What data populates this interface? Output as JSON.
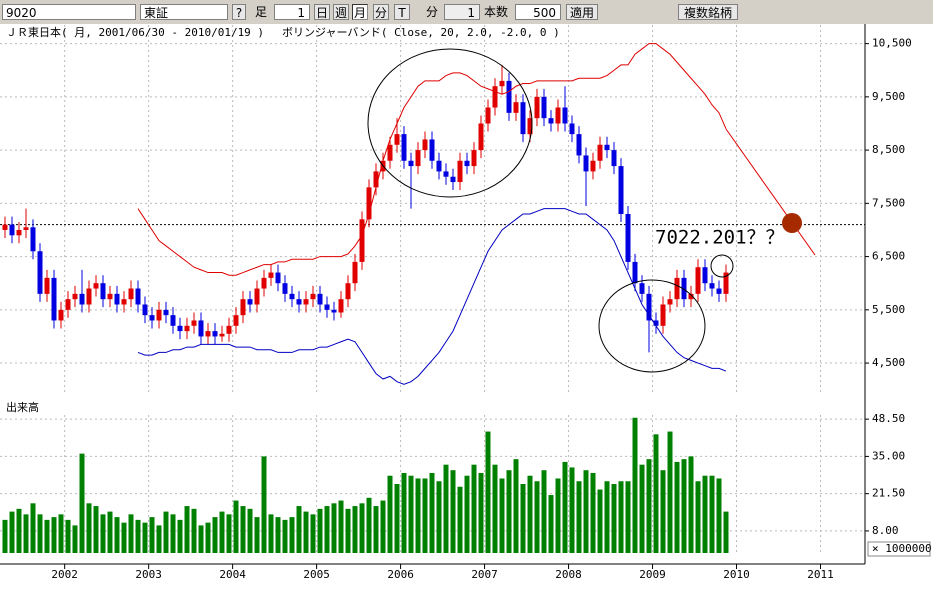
{
  "toolbar": {
    "symbol": "9020",
    "market": "東証",
    "help": "?",
    "bar_label": "足",
    "bar_count": "1",
    "periods": [
      "日",
      "週",
      "月",
      "分",
      "T"
    ],
    "minute_label": "分",
    "minute_value": "1",
    "count_label": "本数",
    "count_value": "500",
    "apply": "適用",
    "multi": "複数銘柄"
  },
  "chart_data": [
    {
      "type": "candlestick",
      "title": "ＪＲ東日本( 月, 2001/06/30 - 2010/01/19 )",
      "indicator": "ボリンジャーバンド( Close, 20, 2.0, -2.0, 0 )",
      "ylim": [
        3900,
        10850
      ],
      "yticks": [
        {
          "value": 4500,
          "label": "4,500"
        },
        {
          "value": 5500,
          "label": "5,500"
        },
        {
          "value": 6500,
          "label": "6,500"
        },
        {
          "value": 7500,
          "label": "7,500"
        },
        {
          "value": 8500,
          "label": "8,500"
        },
        {
          "value": 9500,
          "label": "9,500"
        },
        {
          "value": 10500,
          "label": "10,500"
        }
      ],
      "up_color": "#e00000",
      "down_color": "#0000e0",
      "candles": [
        [
          7000,
          7250,
          6850,
          7100
        ],
        [
          7100,
          7250,
          6750,
          6900
        ],
        [
          6900,
          7150,
          6750,
          7000
        ],
        [
          7000,
          7400,
          6850,
          7050
        ],
        [
          7050,
          7200,
          6450,
          6600
        ],
        [
          6600,
          6750,
          5650,
          5800
        ],
        [
          5800,
          6250,
          5650,
          6100
        ],
        [
          6100,
          6250,
          5150,
          5300
        ],
        [
          5300,
          5650,
          5150,
          5500
        ],
        [
          5500,
          5850,
          5350,
          5700
        ],
        [
          5700,
          5950,
          5550,
          5800
        ],
        [
          5800,
          6250,
          5450,
          5600
        ],
        [
          5600,
          6050,
          5450,
          5900
        ],
        [
          5900,
          6150,
          5750,
          6000
        ],
        [
          6000,
          6150,
          5550,
          5700
        ],
        [
          5700,
          5950,
          5550,
          5800
        ],
        [
          5800,
          5950,
          5450,
          5600
        ],
        [
          5600,
          5850,
          5450,
          5700
        ],
        [
          5700,
          6050,
          5550,
          5900
        ],
        [
          5900,
          6050,
          5450,
          5600
        ],
        [
          5600,
          5750,
          5250,
          5400
        ],
        [
          5400,
          5550,
          5150,
          5300
        ],
        [
          5300,
          5650,
          5150,
          5500
        ],
        [
          5500,
          5650,
          5250,
          5400
        ],
        [
          5400,
          5550,
          5050,
          5200
        ],
        [
          5200,
          5350,
          4950,
          5100
        ],
        [
          5100,
          5350,
          4950,
          5200
        ],
        [
          5200,
          5450,
          5050,
          5300
        ],
        [
          5300,
          5450,
          4850,
          5000
        ],
        [
          5000,
          5250,
          4850,
          5100
        ],
        [
          5100,
          5250,
          4850,
          5000
        ],
        [
          5000,
          5200,
          4900,
          5050
        ],
        [
          5050,
          5350,
          4900,
          5200
        ],
        [
          5200,
          5550,
          5050,
          5400
        ],
        [
          5400,
          5850,
          5250,
          5700
        ],
        [
          5700,
          5850,
          5450,
          5600
        ],
        [
          5600,
          6050,
          5450,
          5900
        ],
        [
          5900,
          6250,
          5750,
          6100
        ],
        [
          6100,
          6350,
          5950,
          6200
        ],
        [
          6200,
          6350,
          5850,
          6000
        ],
        [
          6000,
          6150,
          5650,
          5800
        ],
        [
          5800,
          5950,
          5550,
          5700
        ],
        [
          5700,
          5850,
          5450,
          5600
        ],
        [
          5600,
          5850,
          5450,
          5700
        ],
        [
          5700,
          5950,
          5550,
          5800
        ],
        [
          5800,
          5950,
          5450,
          5600
        ],
        [
          5600,
          5750,
          5350,
          5500
        ],
        [
          5500,
          5650,
          5300,
          5450
        ],
        [
          5450,
          5850,
          5350,
          5700
        ],
        [
          5700,
          6150,
          5550,
          6000
        ],
        [
          6000,
          6550,
          5850,
          6400
        ],
        [
          6400,
          7350,
          6250,
          7200
        ],
        [
          7200,
          7950,
          7050,
          7800
        ],
        [
          7800,
          8250,
          7650,
          8100
        ],
        [
          8100,
          8450,
          7950,
          8300
        ],
        [
          8300,
          8750,
          8150,
          8600
        ],
        [
          8600,
          9100,
          8450,
          8800
        ],
        [
          8800,
          8950,
          8150,
          8300
        ],
        [
          8300,
          8450,
          7400,
          8200
        ],
        [
          8200,
          8650,
          8050,
          8500
        ],
        [
          8500,
          8850,
          8350,
          8700
        ],
        [
          8700,
          8850,
          8150,
          8300
        ],
        [
          8300,
          8450,
          7950,
          8100
        ],
        [
          8100,
          8250,
          7850,
          8000
        ],
        [
          8000,
          8150,
          7750,
          7900
        ],
        [
          7900,
          8450,
          7750,
          8300
        ],
        [
          8300,
          8450,
          8050,
          8200
        ],
        [
          8200,
          8650,
          8050,
          8500
        ],
        [
          8500,
          9150,
          8350,
          9000
        ],
        [
          9000,
          9450,
          8850,
          9300
        ],
        [
          9300,
          9850,
          9150,
          9700
        ],
        [
          9700,
          10100,
          9550,
          9800
        ],
        [
          9800,
          9950,
          9050,
          9200
        ],
        [
          9200,
          9550,
          9050,
          9400
        ],
        [
          9400,
          9550,
          8650,
          8800
        ],
        [
          8800,
          9250,
          8650,
          9100
        ],
        [
          9100,
          9650,
          8950,
          9500
        ],
        [
          9500,
          9650,
          8950,
          9100
        ],
        [
          9100,
          9250,
          8850,
          9000
        ],
        [
          9000,
          9450,
          8850,
          9300
        ],
        [
          9300,
          9700,
          8850,
          9000
        ],
        [
          9000,
          9150,
          8650,
          8800
        ],
        [
          8800,
          8950,
          8250,
          8400
        ],
        [
          8400,
          8550,
          7450,
          8100
        ],
        [
          8100,
          8450,
          7950,
          8300
        ],
        [
          8300,
          8750,
          8150,
          8600
        ],
        [
          8600,
          8750,
          8350,
          8500
        ],
        [
          8500,
          8650,
          8050,
          8200
        ],
        [
          8200,
          8350,
          7150,
          7300
        ],
        [
          7300,
          7450,
          6250,
          6400
        ],
        [
          6400,
          6550,
          5850,
          6000
        ],
        [
          6000,
          6150,
          5650,
          5800
        ],
        [
          5800,
          5950,
          4700,
          5300
        ],
        [
          5300,
          5450,
          5050,
          5200
        ],
        [
          5200,
          5750,
          5050,
          5600
        ],
        [
          5600,
          5850,
          5450,
          5700
        ],
        [
          5700,
          6250,
          5550,
          6100
        ],
        [
          6100,
          6250,
          5550,
          5700
        ],
        [
          5700,
          5950,
          5550,
          5800
        ],
        [
          5800,
          6450,
          5650,
          6300
        ],
        [
          6300,
          6450,
          5850,
          6000
        ],
        [
          6000,
          6150,
          5750,
          5900
        ],
        [
          5900,
          6050,
          5650,
          5800
        ],
        [
          5800,
          6350,
          5650,
          6200
        ]
      ],
      "series": [
        {
          "color": "#e00000",
          "values": [
            null,
            null,
            null,
            null,
            null,
            null,
            null,
            null,
            null,
            null,
            null,
            null,
            null,
            null,
            null,
            null,
            null,
            null,
            null,
            7400,
            7200,
            7000,
            6800,
            6700,
            6600,
            6500,
            6400,
            6300,
            6250,
            6200,
            6200,
            6200,
            6150,
            6150,
            6200,
            6250,
            6300,
            6350,
            6350,
            6400,
            6400,
            6450,
            6450,
            6450,
            6450,
            6500,
            6500,
            6500,
            6500,
            6550,
            6700,
            6900,
            7300,
            7800,
            8300,
            8700,
            9000,
            9300,
            9500,
            9700,
            9800,
            9800,
            9800,
            9900,
            9950,
            9950,
            9900,
            9800,
            9700,
            9650,
            9600,
            9550,
            9600,
            9700,
            9750,
            9750,
            9800,
            9800,
            9800,
            9800,
            9800,
            9800,
            9850,
            9850,
            9850,
            9850,
            9900,
            10000,
            10100,
            10100,
            10300,
            10400,
            10500,
            10500,
            10400,
            10300,
            10150,
            10000,
            9850,
            9700,
            9550,
            9350,
            9200,
            8900
          ]
        },
        {
          "color": "#0000c0",
          "values": [
            null,
            null,
            null,
            null,
            null,
            null,
            null,
            null,
            null,
            null,
            null,
            null,
            null,
            null,
            null,
            null,
            null,
            null,
            null,
            4700,
            4650,
            4650,
            4700,
            4700,
            4750,
            4750,
            4800,
            4800,
            4850,
            4850,
            4850,
            4850,
            4850,
            4800,
            4800,
            4800,
            4750,
            4750,
            4750,
            4700,
            4700,
            4700,
            4750,
            4750,
            4750,
            4800,
            4800,
            4850,
            4900,
            4950,
            4900,
            4700,
            4500,
            4300,
            4200,
            4250,
            4150,
            4100,
            4150,
            4250,
            4400,
            4550,
            4700,
            4900,
            5100,
            5400,
            5700,
            6000,
            6300,
            6600,
            6800,
            7000,
            7100,
            7200,
            7300,
            7300,
            7350,
            7400,
            7400,
            7400,
            7400,
            7350,
            7300,
            7300,
            7200,
            7100,
            7000,
            6800,
            6500,
            6200,
            5900,
            5600,
            5400,
            5200,
            5000,
            4850,
            4700,
            4600,
            4550,
            4500,
            4450,
            4400,
            4400,
            4350
          ]
        }
      ],
      "hline": 7100,
      "annotation": "7022.201？？"
    },
    {
      "type": "bar",
      "title": "出来高",
      "unit_label": "× 1000000",
      "color": "#008000",
      "ylim": [
        0,
        50
      ],
      "yticks": [
        {
          "value": 8,
          "label": "8.00"
        },
        {
          "value": 21.5,
          "label": "21.50"
        },
        {
          "value": 35,
          "label": "35.00"
        },
        {
          "value": 48.5,
          "label": "48.50"
        }
      ],
      "xlim": [
        2001.23,
        2011.53
      ],
      "xticks": [
        2002,
        2003,
        2004,
        2005,
        2006,
        2007,
        2008,
        2009,
        2010,
        2011
      ],
      "values": [
        12,
        15,
        16,
        14,
        18,
        14,
        12,
        13,
        14,
        12,
        10,
        36,
        18,
        17,
        14,
        15,
        13,
        11,
        14,
        12,
        11,
        13,
        10,
        15,
        14,
        12,
        17,
        16,
        10,
        11,
        13,
        15,
        14,
        19,
        17,
        16,
        13,
        35,
        14,
        13,
        12,
        13,
        17,
        15,
        14,
        16,
        17,
        18,
        19,
        16,
        17,
        18,
        20,
        17,
        19,
        28,
        25,
        29,
        28,
        27,
        27,
        29,
        26,
        32,
        30,
        24,
        28,
        32,
        29,
        44,
        32,
        27,
        30,
        34,
        25,
        28,
        26,
        30,
        21,
        27,
        33,
        31,
        26,
        30,
        29,
        23,
        26,
        25,
        26,
        26,
        49,
        32,
        34,
        43,
        30,
        44,
        33,
        34,
        35,
        26,
        28,
        28,
        27,
        15
      ]
    }
  ]
}
